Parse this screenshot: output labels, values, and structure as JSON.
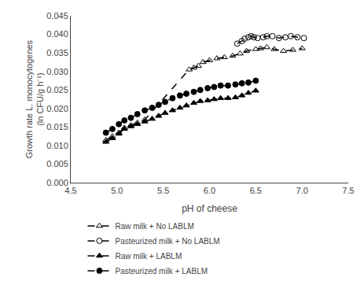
{
  "chart_data": {
    "type": "line",
    "xlabel": "pH of cheese",
    "ylabel": [
      "Growth rate L. monocytogenes",
      "(ln CFU/g h⁻¹)"
    ],
    "xlim": [
      4.5,
      7.5
    ],
    "ylim": [
      0.0,
      0.045
    ],
    "xticks": [
      4.5,
      {
        "value": 5.0,
        "label": "5.0"
      },
      5.5,
      {
        "value": 6.0,
        "label": "6.0"
      },
      6.5,
      {
        "value": 7.0,
        "label": "7.0"
      },
      7.5
    ],
    "yticks": [
      {
        "value": 0.0,
        "label": "0.000"
      },
      0.005,
      {
        "value": 0.01,
        "label": "0.010"
      },
      0.015,
      {
        "value": 0.02,
        "label": "0.020"
      },
      0.025,
      {
        "value": 0.03,
        "label": "0.030"
      },
      0.035,
      {
        "value": 0.04,
        "label": "0.040"
      },
      0.045
    ],
    "grid": false,
    "legend": "bottom",
    "series": [
      {
        "name": "Raw milk + No LABLM",
        "color": "black",
        "marker": "triangle-up-open",
        "line_style": "dash",
        "x": [
          4.88,
          4.95,
          5.02,
          5.08,
          5.15,
          5.22,
          5.3,
          5.78,
          5.83,
          5.88,
          5.93,
          6.0,
          6.08,
          6.16,
          6.25,
          6.33,
          6.4,
          6.5,
          6.55,
          6.62,
          6.7,
          6.8,
          6.9,
          7.0
        ],
        "values": [
          0.0115,
          0.0125,
          0.0135,
          0.0148,
          0.0155,
          0.0162,
          0.017,
          0.0305,
          0.031,
          0.0315,
          0.0325,
          0.033,
          0.0335,
          0.0338,
          0.0342,
          0.0348,
          0.0355,
          0.036,
          0.0362,
          0.0365,
          0.036,
          0.0355,
          0.0358,
          0.0362
        ]
      },
      {
        "name": "Pasteurized milk + No LABLM",
        "color": "black",
        "marker": "circle-open",
        "line_style": "dash",
        "x": [
          6.3,
          6.35,
          6.38,
          6.42,
          6.45,
          6.48,
          6.52,
          6.58,
          6.62,
          6.68,
          6.75,
          6.82,
          6.88,
          6.95,
          7.02
        ],
        "values": [
          0.0375,
          0.0382,
          0.0388,
          0.0392,
          0.0395,
          0.0392,
          0.039,
          0.0392,
          0.0395,
          0.0395,
          0.039,
          0.0392,
          0.0395,
          0.0392,
          0.039
        ]
      },
      {
        "name": "Raw milk + LABLM",
        "color": "black",
        "marker": "triangle-up",
        "line_style": "dash",
        "x": [
          4.88,
          4.95,
          5.02,
          5.08,
          5.15,
          5.22,
          5.3,
          5.38,
          5.45,
          5.52,
          5.6,
          5.68,
          5.75,
          5.83,
          5.9,
          5.98,
          6.05,
          6.12,
          6.2,
          6.28,
          6.35,
          6.42,
          6.5
        ],
        "values": [
          0.011,
          0.012,
          0.0132,
          0.0145,
          0.0152,
          0.0158,
          0.0165,
          0.0172,
          0.018,
          0.0188,
          0.0195,
          0.0202,
          0.0208,
          0.0215,
          0.022,
          0.0222,
          0.0225,
          0.0228,
          0.0228,
          0.023,
          0.0235,
          0.0242,
          0.0248
        ]
      },
      {
        "name": "Pasteurized milk + LABLM",
        "color": "black",
        "marker": "circle",
        "line_style": "dash",
        "x": [
          4.88,
          4.95,
          5.02,
          5.08,
          5.15,
          5.22,
          5.3,
          5.38,
          5.45,
          5.52,
          5.6,
          5.68,
          5.75,
          5.83,
          5.9,
          5.98,
          6.05,
          6.12,
          6.2,
          6.28,
          6.35,
          6.42,
          6.5
        ],
        "values": [
          0.0135,
          0.0145,
          0.0158,
          0.0168,
          0.0175,
          0.0185,
          0.0195,
          0.0202,
          0.021,
          0.0218,
          0.0228,
          0.0235,
          0.024,
          0.0245,
          0.025,
          0.0255,
          0.0258,
          0.0262,
          0.0262,
          0.0265,
          0.0268,
          0.027,
          0.0275
        ]
      }
    ]
  }
}
